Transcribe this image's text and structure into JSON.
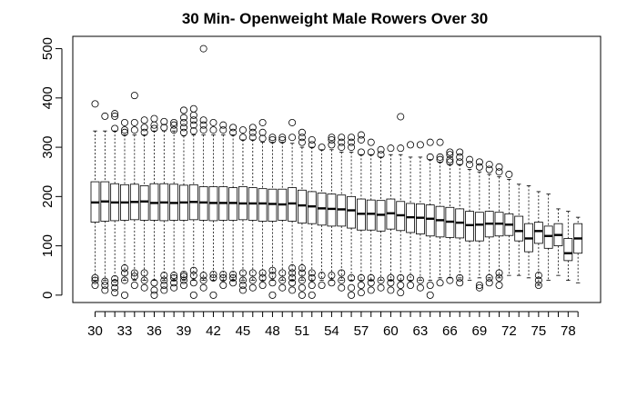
{
  "chart_data": {
    "type": "boxplot",
    "title": "30 Min- Openweight Male Rowers Over 30",
    "xlabel": "",
    "ylabel": "",
    "ylim": [
      -15,
      525
    ],
    "y_ticks": [
      0,
      100,
      200,
      300,
      400,
      500
    ],
    "x_tick_labels": [
      "30",
      "33",
      "36",
      "39",
      "42",
      "45",
      "48",
      "51",
      "54",
      "57",
      "60",
      "63",
      "66",
      "69",
      "72",
      "75",
      "78"
    ],
    "grid": false,
    "legend": "none",
    "box_color": "#000000",
    "boxes": [
      {
        "age": 30,
        "whisker_low": 30,
        "q1": 148,
        "median": 188,
        "q3": 230,
        "whisker_high": 333,
        "outliers_high": [
          388
        ],
        "outliers_low": [
          20,
          30,
          35
        ]
      },
      {
        "age": 31,
        "whisker_low": 30,
        "q1": 150,
        "median": 190,
        "q3": 230,
        "whisker_high": 333,
        "outliers_high": [
          363
        ],
        "outliers_low": [
          10,
          20,
          28
        ]
      },
      {
        "age": 32,
        "whisker_low": 30,
        "q1": 151,
        "median": 188,
        "q3": 226,
        "whisker_high": 333,
        "outliers_high": [
          338,
          363,
          368
        ],
        "outliers_low": [
          5,
          15,
          25,
          33
        ]
      },
      {
        "age": 33,
        "whisker_low": 30,
        "q1": 152,
        "median": 188,
        "q3": 224,
        "whisker_high": 325,
        "outliers_high": [
          330,
          335,
          350
        ],
        "outliers_low": [
          0,
          30,
          45,
          55
        ]
      },
      {
        "age": 34,
        "whisker_low": 30,
        "q1": 153,
        "median": 189,
        "q3": 225,
        "whisker_high": 325,
        "outliers_high": [
          335,
          350,
          405
        ],
        "outliers_low": [
          20,
          38,
          45
        ]
      },
      {
        "age": 35,
        "whisker_low": 30,
        "q1": 152,
        "median": 190,
        "q3": 222,
        "whisker_high": 325,
        "outliers_high": [
          330,
          340,
          355
        ],
        "outliers_low": [
          15,
          30,
          45
        ]
      },
      {
        "age": 36,
        "whisker_low": 30,
        "q1": 152,
        "median": 187,
        "q3": 226,
        "whisker_high": 333,
        "outliers_high": [
          338,
          345,
          358
        ],
        "outliers_low": [
          0,
          10,
          25
        ]
      },
      {
        "age": 37,
        "whisker_low": 30,
        "q1": 151,
        "median": 188,
        "q3": 226,
        "whisker_high": 333,
        "outliers_high": [
          340,
          352
        ],
        "outliers_low": [
          10,
          20,
          30,
          40
        ]
      },
      {
        "age": 38,
        "whisker_low": 30,
        "q1": 152,
        "median": 187,
        "q3": 225,
        "whisker_high": 333,
        "outliers_high": [
          335,
          345,
          350
        ],
        "outliers_low": [
          15,
          25,
          35,
          40
        ]
      },
      {
        "age": 39,
        "whisker_low": 30,
        "q1": 152,
        "median": 188,
        "q3": 223,
        "whisker_high": 323,
        "outliers_high": [
          330,
          340,
          350,
          360,
          375
        ],
        "outliers_low": [
          20,
          30,
          38,
          42
        ]
      },
      {
        "age": 40,
        "whisker_low": 30,
        "q1": 153,
        "median": 189,
        "q3": 224,
        "whisker_high": 325,
        "outliers_high": [
          333,
          345,
          355,
          365,
          378
        ],
        "outliers_low": [
          0,
          25,
          40,
          50
        ]
      },
      {
        "age": 41,
        "whisker_low": 30,
        "q1": 152,
        "median": 188,
        "q3": 220,
        "whisker_high": 325,
        "outliers_high": [
          335,
          345,
          355,
          500
        ],
        "outliers_low": [
          15,
          30,
          40
        ]
      },
      {
        "age": 42,
        "whisker_low": 30,
        "q1": 151,
        "median": 187,
        "q3": 220,
        "whisker_high": 325,
        "outliers_high": [
          335,
          350
        ],
        "outliers_low": [
          0,
          35,
          42
        ]
      },
      {
        "age": 43,
        "whisker_low": 30,
        "q1": 152,
        "median": 187,
        "q3": 220,
        "whisker_high": 325,
        "outliers_high": [
          335,
          345
        ],
        "outliers_low": [
          20,
          35,
          42
        ]
      },
      {
        "age": 44,
        "whisker_low": 30,
        "q1": 152,
        "median": 187,
        "q3": 218,
        "whisker_high": 325,
        "outliers_high": [
          330,
          340
        ],
        "outliers_low": [
          25,
          35,
          42
        ]
      },
      {
        "age": 45,
        "whisker_low": 30,
        "q1": 153,
        "median": 186,
        "q3": 220,
        "whisker_high": 315,
        "outliers_high": [
          320,
          335
        ],
        "outliers_low": [
          10,
          20,
          30,
          45
        ]
      },
      {
        "age": 46,
        "whisker_low": 30,
        "q1": 152,
        "median": 186,
        "q3": 218,
        "whisker_high": 315,
        "outliers_high": [
          320,
          330,
          340
        ],
        "outliers_low": [
          15,
          30,
          45
        ]
      },
      {
        "age": 47,
        "whisker_low": 30,
        "q1": 150,
        "median": 186,
        "q3": 216,
        "whisker_high": 310,
        "outliers_high": [
          318,
          330,
          350
        ],
        "outliers_low": [
          20,
          35,
          45
        ]
      },
      {
        "age": 48,
        "whisker_low": 30,
        "q1": 150,
        "median": 185,
        "q3": 215,
        "whisker_high": 310,
        "outliers_high": [
          315,
          320
        ],
        "outliers_low": [
          0,
          25,
          40,
          50
        ]
      },
      {
        "age": 49,
        "whisker_low": 30,
        "q1": 152,
        "median": 184,
        "q3": 215,
        "whisker_high": 310,
        "outliers_high": [
          315,
          320
        ],
        "outliers_low": [
          15,
          30,
          45
        ]
      },
      {
        "age": 50,
        "whisker_low": 30,
        "q1": 150,
        "median": 186,
        "q3": 218,
        "whisker_high": 308,
        "outliers_high": [
          320,
          350
        ],
        "outliers_low": [
          10,
          25,
          35,
          45,
          55
        ]
      },
      {
        "age": 51,
        "whisker_low": 30,
        "q1": 146,
        "median": 182,
        "q3": 213,
        "whisker_high": 300,
        "outliers_high": [
          310,
          320,
          330
        ],
        "outliers_low": [
          0,
          15,
          30,
          45,
          55
        ]
      },
      {
        "age": 52,
        "whisker_low": 30,
        "q1": 145,
        "median": 180,
        "q3": 210,
        "whisker_high": 300,
        "outliers_high": [
          305,
          315
        ],
        "outliers_low": [
          0,
          20,
          35,
          45
        ]
      },
      {
        "age": 53,
        "whisker_low": 30,
        "q1": 142,
        "median": 176,
        "q3": 207,
        "whisker_high": 295,
        "outliers_high": [
          300
        ],
        "outliers_low": [
          20,
          40
        ]
      },
      {
        "age": 54,
        "whisker_low": 30,
        "q1": 140,
        "median": 175,
        "q3": 205,
        "whisker_high": 295,
        "outliers_high": [
          305,
          315,
          320
        ],
        "outliers_low": [
          25,
          40
        ]
      },
      {
        "age": 55,
        "whisker_low": 30,
        "q1": 140,
        "median": 174,
        "q3": 203,
        "whisker_high": 290,
        "outliers_high": [
          300,
          310,
          320
        ],
        "outliers_low": [
          15,
          30,
          45
        ]
      },
      {
        "age": 56,
        "whisker_low": 30,
        "q1": 136,
        "median": 172,
        "q3": 200,
        "whisker_high": 290,
        "outliers_high": [
          300,
          310,
          320
        ],
        "outliers_low": [
          0,
          15,
          35
        ]
      },
      {
        "age": 57,
        "whisker_low": 30,
        "q1": 132,
        "median": 165,
        "q3": 195,
        "whisker_high": 285,
        "outliers_high": [
          290,
          315,
          325
        ],
        "outliers_low": [
          5,
          20,
          35
        ]
      },
      {
        "age": 58,
        "whisker_low": 30,
        "q1": 132,
        "median": 165,
        "q3": 193,
        "whisker_high": 285,
        "outliers_high": [
          290,
          310
        ],
        "outliers_low": [
          10,
          25,
          35
        ]
      },
      {
        "age": 59,
        "whisker_low": 30,
        "q1": 130,
        "median": 163,
        "q3": 192,
        "whisker_high": 280,
        "outliers_high": [
          285,
          295
        ],
        "outliers_low": [
          15,
          30
        ]
      },
      {
        "age": 60,
        "whisker_low": 30,
        "q1": 134,
        "median": 166,
        "q3": 195,
        "whisker_high": 285,
        "outliers_high": [
          298
        ],
        "outliers_low": [
          10,
          25,
          35
        ]
      },
      {
        "age": 61,
        "whisker_low": 30,
        "q1": 131,
        "median": 162,
        "q3": 190,
        "whisker_high": 285,
        "outliers_high": [
          298,
          362
        ],
        "outliers_low": [
          5,
          20,
          35
        ]
      },
      {
        "age": 62,
        "whisker_low": 30,
        "q1": 127,
        "median": 158,
        "q3": 186,
        "whisker_high": 280,
        "outliers_high": [
          305
        ],
        "outliers_low": [
          20,
          35
        ]
      },
      {
        "age": 63,
        "whisker_low": 30,
        "q1": 124,
        "median": 157,
        "q3": 185,
        "whisker_high": 280,
        "outliers_high": [
          305
        ],
        "outliers_low": [
          15,
          30
        ]
      },
      {
        "age": 64,
        "whisker_low": 30,
        "q1": 120,
        "median": 155,
        "q3": 183,
        "whisker_high": 275,
        "outliers_high": [
          280,
          310
        ],
        "outliers_low": [
          0,
          20
        ]
      },
      {
        "age": 65,
        "whisker_low": 35,
        "q1": 118,
        "median": 152,
        "q3": 180,
        "whisker_high": 270,
        "outliers_high": [
          275,
          280,
          310
        ],
        "outliers_low": [
          25
        ]
      },
      {
        "age": 66,
        "whisker_low": 35,
        "q1": 117,
        "median": 149,
        "q3": 178,
        "whisker_high": 265,
        "outliers_high": [
          270,
          275,
          285,
          290
        ],
        "outliers_low": [
          30
        ]
      },
      {
        "age": 67,
        "whisker_low": 35,
        "q1": 116,
        "median": 147,
        "q3": 175,
        "whisker_high": 265,
        "outliers_high": [
          270,
          280,
          290
        ],
        "outliers_low": [
          25,
          35
        ]
      },
      {
        "age": 68,
        "whisker_low": 30,
        "q1": 110,
        "median": 142,
        "q3": 170,
        "whisker_high": 255,
        "outliers_high": [
          265,
          275
        ],
        "outliers_low": []
      },
      {
        "age": 69,
        "whisker_low": 35,
        "q1": 110,
        "median": 143,
        "q3": 168,
        "whisker_high": 250,
        "outliers_high": [
          260,
          270
        ],
        "outliers_low": [
          15,
          20
        ]
      },
      {
        "age": 70,
        "whisker_low": 35,
        "q1": 118,
        "median": 145,
        "q3": 170,
        "whisker_high": 245,
        "outliers_high": [
          255,
          265
        ],
        "outliers_low": [
          25,
          35
        ]
      },
      {
        "age": 71,
        "whisker_low": 35,
        "q1": 120,
        "median": 145,
        "q3": 168,
        "whisker_high": 240,
        "outliers_high": [
          250,
          260
        ],
        "outliers_low": [
          20,
          35,
          45
        ]
      },
      {
        "age": 72,
        "whisker_low": 40,
        "q1": 121,
        "median": 143,
        "q3": 165,
        "whisker_high": 235,
        "outliers_high": [
          245
        ],
        "outliers_low": []
      },
      {
        "age": 73,
        "whisker_low": 40,
        "q1": 110,
        "median": 130,
        "q3": 160,
        "whisker_high": 225,
        "outliers_high": [],
        "outliers_low": []
      },
      {
        "age": 74,
        "whisker_low": 35,
        "q1": 88,
        "median": 115,
        "q3": 145,
        "whisker_high": 222,
        "outliers_high": [],
        "outliers_low": []
      },
      {
        "age": 75,
        "whisker_low": 20,
        "q1": 105,
        "median": 130,
        "q3": 148,
        "whisker_high": 210,
        "outliers_high": [],
        "outliers_low": [
          20,
          30,
          40
        ]
      },
      {
        "age": 76,
        "whisker_low": 30,
        "q1": 95,
        "median": 120,
        "q3": 140,
        "whisker_high": 205,
        "outliers_high": [],
        "outliers_low": []
      },
      {
        "age": 77,
        "whisker_low": 40,
        "q1": 100,
        "median": 122,
        "q3": 145,
        "whisker_high": 175,
        "outliers_high": [],
        "outliers_low": []
      },
      {
        "age": 78,
        "whisker_low": 30,
        "q1": 70,
        "median": 85,
        "q3": 115,
        "whisker_high": 170,
        "outliers_high": [],
        "outliers_low": []
      },
      {
        "age": 79,
        "whisker_low": 25,
        "q1": 85,
        "median": 115,
        "q3": 145,
        "whisker_high": 158,
        "outliers_high": [],
        "outliers_low": []
      }
    ]
  }
}
